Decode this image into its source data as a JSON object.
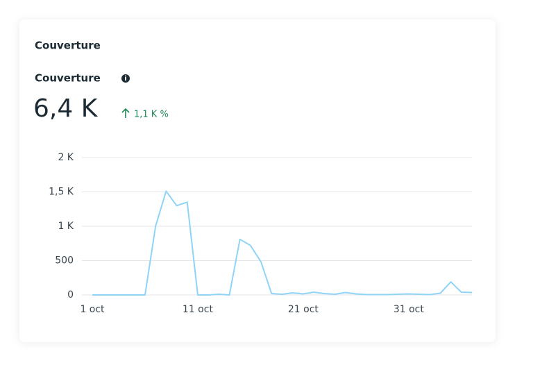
{
  "card_title": "Couverture",
  "metric": {
    "label": "Couverture",
    "value": "6,4 K",
    "change": "1,1 K %"
  },
  "chart_data": {
    "type": "line",
    "categories": [
      "1 oct",
      null,
      null,
      null,
      null,
      null,
      null,
      null,
      null,
      null,
      "11 oct",
      null,
      null,
      null,
      null,
      null,
      null,
      null,
      null,
      null,
      "21 oct",
      null,
      null,
      null,
      null,
      null,
      null,
      null,
      null,
      null,
      "31 oct",
      null,
      null,
      null,
      null,
      null,
      null
    ],
    "values": [
      0,
      0,
      0,
      0,
      0,
      0,
      1000,
      1510,
      1300,
      1350,
      0,
      0,
      10,
      0,
      810,
      720,
      480,
      20,
      10,
      30,
      15,
      40,
      20,
      10,
      35,
      15,
      5,
      5,
      5,
      10,
      15,
      10,
      5,
      25,
      190,
      40,
      35
    ],
    "color": "#8fd3f7",
    "ylim": [
      0,
      2000
    ],
    "yticks": [
      0,
      500,
      {
        "value": 1000,
        "label": "1 K"
      },
      {
        "value": 1500,
        "label": "1,5 K"
      },
      {
        "value": 2000,
        "label": "2 K"
      }
    ],
    "grid": true
  }
}
